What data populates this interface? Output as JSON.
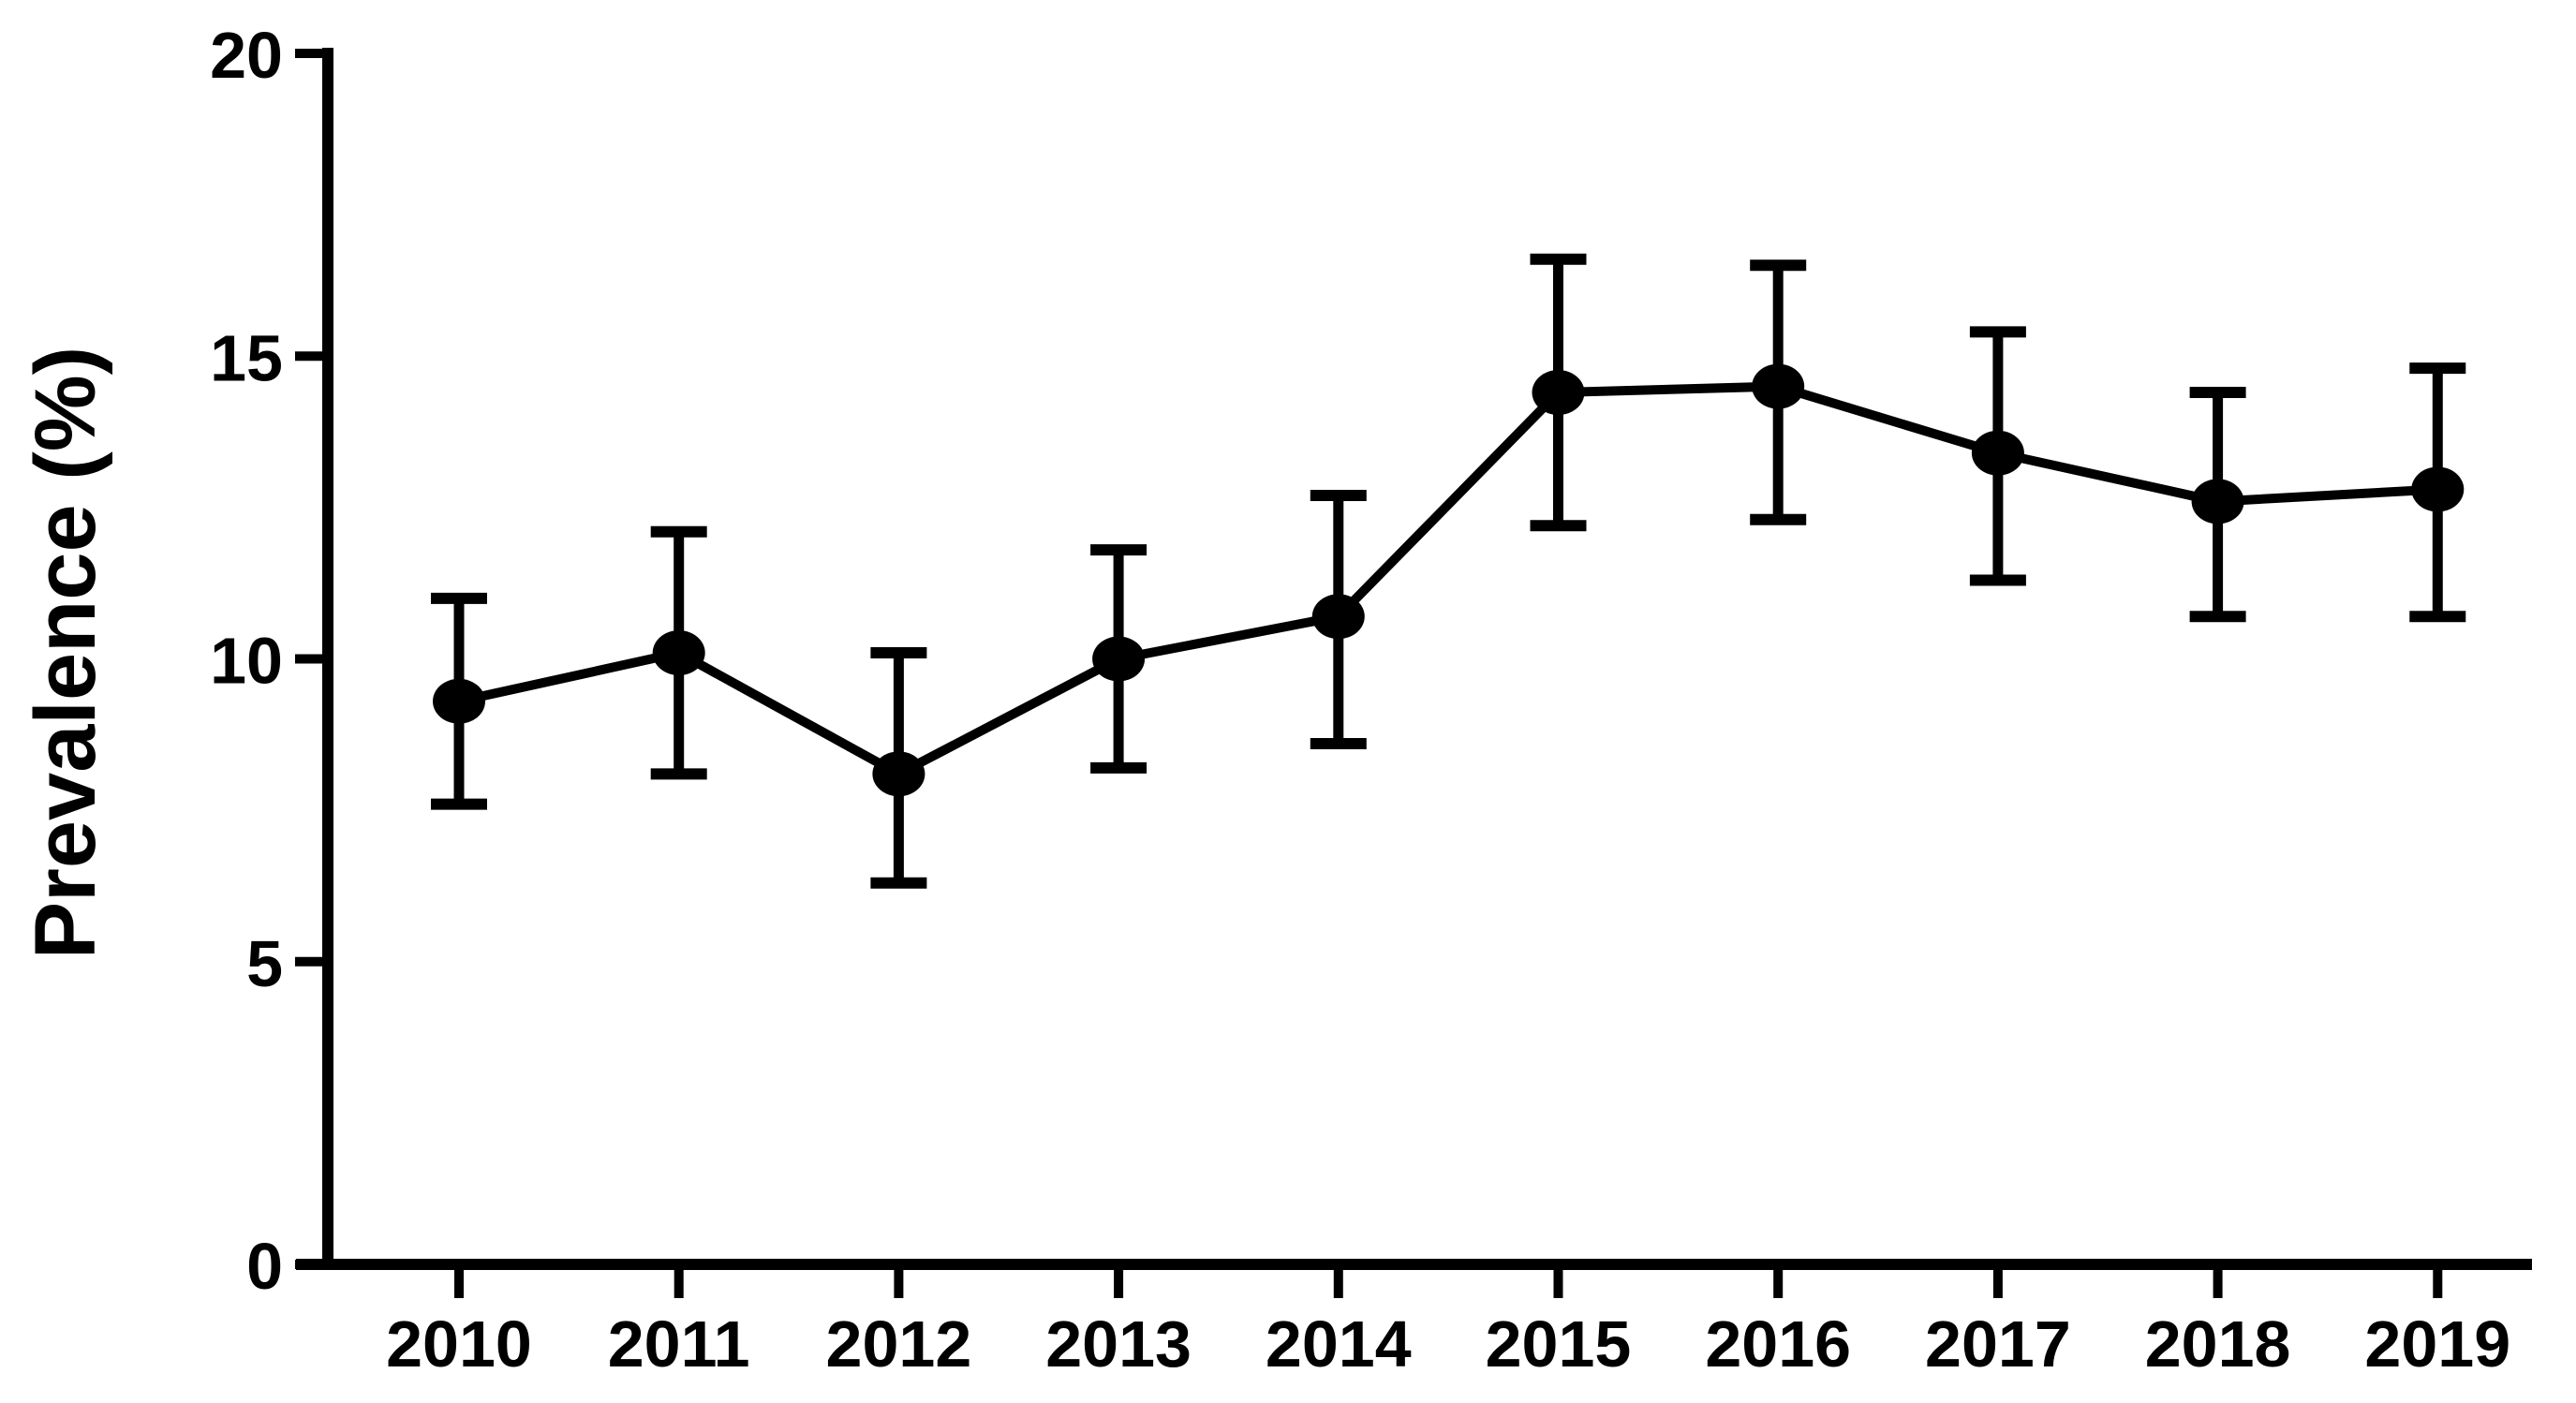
{
  "chart_data": {
    "type": "line",
    "title": "",
    "xlabel": "",
    "ylabel": "Prevalence (%)",
    "categories": [
      "2010",
      "2011",
      "2012",
      "2013",
      "2014",
      "2015",
      "2016",
      "2017",
      "2018",
      "2019"
    ],
    "series": [
      {
        "name": "Prevalence",
        "values": [
          9.3,
          10.1,
          8.1,
          10.0,
          10.7,
          14.4,
          14.5,
          13.4,
          12.6,
          12.8
        ],
        "ci_low": [
          7.6,
          8.1,
          6.3,
          8.2,
          8.6,
          12.2,
          12.3,
          11.3,
          10.7,
          10.7
        ],
        "ci_high": [
          11.0,
          12.1,
          10.1,
          11.8,
          12.7,
          16.6,
          16.5,
          15.4,
          14.4,
          14.8
        ]
      }
    ],
    "ylim": [
      0,
      20
    ],
    "yticks": [
      0,
      5,
      10,
      15,
      20
    ],
    "grid": false,
    "legend_position": "none",
    "marker": "filled-circle",
    "error_bars": "vertical-with-caps",
    "line_color": "#000000",
    "marker_color": "#000000",
    "background_color": "#ffffff"
  }
}
